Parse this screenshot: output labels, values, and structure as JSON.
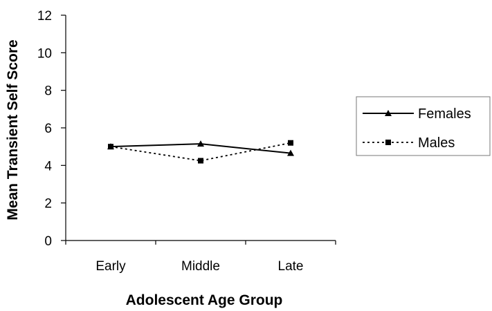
{
  "chart_data": {
    "type": "line",
    "title": "",
    "xlabel": "Adolescent Age Group",
    "ylabel": "Mean Transient Self Score",
    "categories": [
      "Early",
      "Middle",
      "Late"
    ],
    "ylim": [
      0,
      12
    ],
    "yticks": [
      "0",
      "2",
      "4",
      "6",
      "8",
      "10",
      "12"
    ],
    "grid": false,
    "legend_position": "right",
    "series": [
      {
        "name": "Females",
        "values": [
          5.0,
          5.15,
          4.65
        ],
        "line": "solid",
        "marker": "triangle",
        "color": "#000000"
      },
      {
        "name": "Males",
        "values": [
          5.0,
          4.25,
          5.2
        ],
        "line": "dotted",
        "marker": "square",
        "color": "#000000"
      }
    ]
  }
}
